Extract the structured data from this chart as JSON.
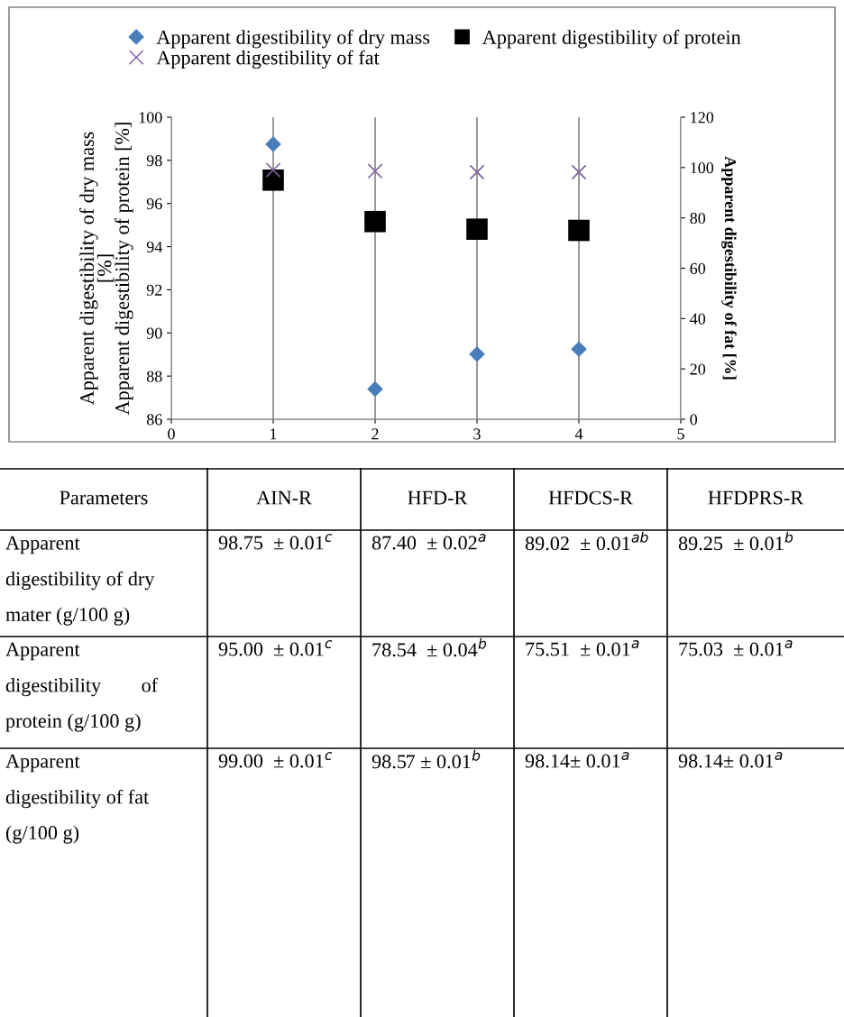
{
  "chart_data": {
    "type": "scatter",
    "ylabel": "Apparent digestibility of dry mass\n[%]\nApparent digestibility of protein [%]",
    "y2label": "Apparent digestibility of fat [%]",
    "x": [
      1,
      2,
      3,
      4
    ],
    "xlim": [
      0,
      5
    ],
    "xticks": [
      0,
      1,
      2,
      3,
      4,
      5
    ],
    "ylim": [
      86,
      100
    ],
    "yticks": [
      86,
      88,
      90,
      92,
      94,
      96,
      98,
      100
    ],
    "y2lim": [
      0,
      120
    ],
    "y2ticks": [
      0,
      20,
      40,
      60,
      80,
      100,
      120
    ],
    "grid": "x",
    "legend": "top",
    "annotations": [
      "Parameters",
      "AIN-R",
      "HFD-R",
      "HFDCS-R",
      "HFDPRS-R",
      "Apparent\ndigestibility of dry\nmater (g/100 g)",
      "98.75  ± 0.01$^{c}$",
      "87.40  ± 0.02$^{a}$",
      "89.02  ± 0.01$^{ab}$",
      "89.25  ± 0.01$^{b}$",
      "Apparent\ndigestibility        of\nprotein (g/100 g)",
      "95.00  ± 0.01$^{c}$",
      "78.54  ± 0.04$^{b}$",
      "75.51  ± 0.01$^{a}$",
      "75.03  ± 0.01$^{a}$",
      "Apparent\ndigestibility of fat\n(g/100 g)",
      "99.00  ± 0.01$^{c}$",
      "98.57 ± 0.01$^{b}$",
      "98.14± 0.01$^{a}$",
      "98.14± 0.01$^{a}$"
    ],
    "series": [
      {
        "name": "Apparent digestibility of dry mass",
        "color": "#4a7ebb",
        "marker": "diamond",
        "values": [
          98.75,
          87.4,
          89.02,
          89.25
        ]
      },
      {
        "name": "Apparent digestibility of protein",
        "color": "#000000",
        "marker": "square",
        "axis": "y2",
        "values": [
          95.0,
          78.54,
          75.51,
          75.03
        ]
      },
      {
        "name": "Apparent digestibility of fat",
        "color": "#7f60a0",
        "marker": "cross",
        "axis": "y2",
        "values": [
          99.0,
          98.57,
          98.14,
          98.14
        ]
      }
    ]
  }
}
